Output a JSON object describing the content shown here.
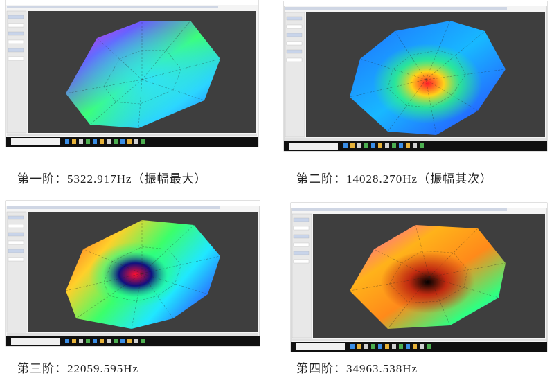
{
  "figures": [
    {
      "caption": "第一阶：5322.917Hz（振幅最大）"
    },
    {
      "caption": "第二阶：14028.270Hz（振幅其次）"
    },
    {
      "caption": "第三阶：22059.595Hz"
    },
    {
      "caption": "第四阶：34963.538Hz"
    }
  ]
}
